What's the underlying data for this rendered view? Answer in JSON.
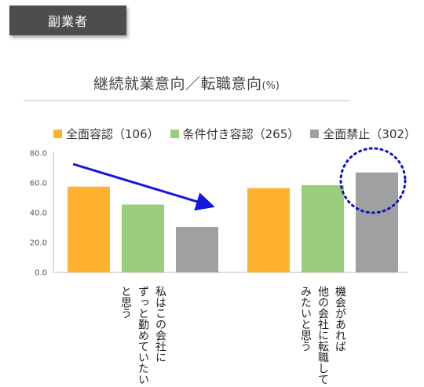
{
  "tag": {
    "label": "副業者"
  },
  "chart_data": {
    "type": "bar",
    "title": "継続就業意向／転職意向",
    "title_unit": "(%)",
    "categories": [
      [
        "私はこの会社に",
        "ずっと勤めていたい",
        "と思う"
      ],
      [
        "機会があれば",
        "他の会社に転職して",
        "みたいと思う"
      ]
    ],
    "series": [
      {
        "name": "全面容認（106）",
        "color": "#ffb230",
        "values": [
          57.5,
          56.5
        ]
      },
      {
        "name": "条件付き容認（265）",
        "color": "#9acd7c",
        "values": [
          45.5,
          58.5
        ]
      },
      {
        "name": "全面禁止（302）",
        "color": "#a0a0a0",
        "values": [
          30.5,
          67.0
        ]
      }
    ],
    "ylim": [
      0,
      80
    ],
    "yticks": [
      "0.0",
      "20.0",
      "40.0",
      "60.0",
      "80.0"
    ],
    "grid": false,
    "legend_position": "top",
    "annotation_colors": {
      "arrow": "#1515e0",
      "circle": "#0a14c8"
    }
  }
}
